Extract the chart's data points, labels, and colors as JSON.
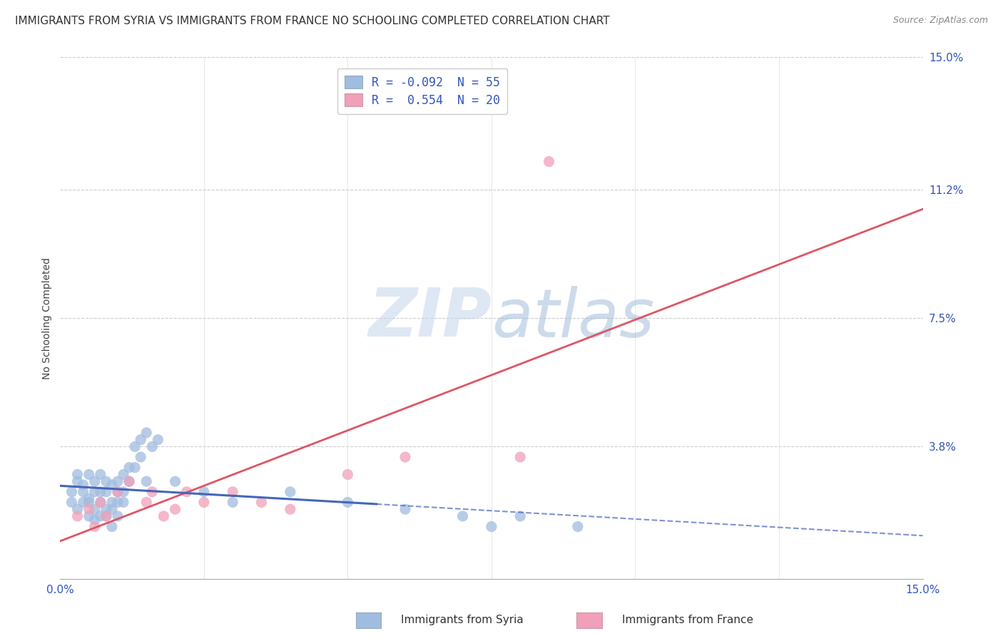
{
  "title": "IMMIGRANTS FROM SYRIA VS IMMIGRANTS FROM FRANCE NO SCHOOLING COMPLETED CORRELATION CHART",
  "source": "Source: ZipAtlas.com",
  "ylabel": "No Schooling Completed",
  "watermark": "ZIPatlas",
  "xlim": [
    0.0,
    0.15
  ],
  "ylim": [
    0.0,
    0.15
  ],
  "ytick_vals": [
    0.038,
    0.075,
    0.112,
    0.15
  ],
  "ytick_labels": [
    "3.8%",
    "7.5%",
    "11.2%",
    "15.0%"
  ],
  "xticks": [
    0.0,
    0.15
  ],
  "xtick_labels": [
    "0.0%",
    "15.0%"
  ],
  "syria_color": "#a0bce0",
  "france_color": "#f0a0b8",
  "syria_line_color": "#4466bb",
  "france_line_color": "#dd5566",
  "syria_R": -0.092,
  "syria_N": 55,
  "france_R": 0.554,
  "france_N": 20,
  "legend_text_color": "#3355bb",
  "syria_scatter": [
    [
      0.002,
      0.025
    ],
    [
      0.002,
      0.022
    ],
    [
      0.003,
      0.03
    ],
    [
      0.003,
      0.028
    ],
    [
      0.003,
      0.02
    ],
    [
      0.004,
      0.027
    ],
    [
      0.004,
      0.022
    ],
    [
      0.004,
      0.025
    ],
    [
      0.005,
      0.03
    ],
    [
      0.005,
      0.023
    ],
    [
      0.005,
      0.018
    ],
    [
      0.005,
      0.022
    ],
    [
      0.006,
      0.028
    ],
    [
      0.006,
      0.025
    ],
    [
      0.006,
      0.02
    ],
    [
      0.006,
      0.017
    ],
    [
      0.007,
      0.03
    ],
    [
      0.007,
      0.025
    ],
    [
      0.007,
      0.022
    ],
    [
      0.007,
      0.018
    ],
    [
      0.008,
      0.028
    ],
    [
      0.008,
      0.025
    ],
    [
      0.008,
      0.02
    ],
    [
      0.008,
      0.018
    ],
    [
      0.009,
      0.027
    ],
    [
      0.009,
      0.022
    ],
    [
      0.009,
      0.02
    ],
    [
      0.009,
      0.015
    ],
    [
      0.01,
      0.028
    ],
    [
      0.01,
      0.025
    ],
    [
      0.01,
      0.022
    ],
    [
      0.01,
      0.018
    ],
    [
      0.011,
      0.03
    ],
    [
      0.011,
      0.025
    ],
    [
      0.011,
      0.022
    ],
    [
      0.012,
      0.032
    ],
    [
      0.012,
      0.028
    ],
    [
      0.013,
      0.038
    ],
    [
      0.013,
      0.032
    ],
    [
      0.014,
      0.04
    ],
    [
      0.014,
      0.035
    ],
    [
      0.015,
      0.042
    ],
    [
      0.015,
      0.028
    ],
    [
      0.016,
      0.038
    ],
    [
      0.017,
      0.04
    ],
    [
      0.02,
      0.028
    ],
    [
      0.025,
      0.025
    ],
    [
      0.03,
      0.022
    ],
    [
      0.04,
      0.025
    ],
    [
      0.05,
      0.022
    ],
    [
      0.06,
      0.02
    ],
    [
      0.07,
      0.018
    ],
    [
      0.075,
      0.015
    ],
    [
      0.08,
      0.018
    ],
    [
      0.09,
      0.015
    ]
  ],
  "france_scatter": [
    [
      0.003,
      0.018
    ],
    [
      0.005,
      0.02
    ],
    [
      0.006,
      0.015
    ],
    [
      0.007,
      0.022
    ],
    [
      0.008,
      0.018
    ],
    [
      0.01,
      0.025
    ],
    [
      0.012,
      0.028
    ],
    [
      0.015,
      0.022
    ],
    [
      0.016,
      0.025
    ],
    [
      0.018,
      0.018
    ],
    [
      0.02,
      0.02
    ],
    [
      0.022,
      0.025
    ],
    [
      0.025,
      0.022
    ],
    [
      0.03,
      0.025
    ],
    [
      0.035,
      0.022
    ],
    [
      0.04,
      0.02
    ],
    [
      0.05,
      0.03
    ],
    [
      0.06,
      0.035
    ],
    [
      0.08,
      0.035
    ],
    [
      0.085,
      0.12
    ]
  ],
  "syria_trend_solid_end": 0.055,
  "background_color": "#ffffff",
  "grid_color": "#cccccc",
  "title_fontsize": 11,
  "axis_label_fontsize": 10,
  "tick_fontsize": 11,
  "legend_fontsize": 12
}
